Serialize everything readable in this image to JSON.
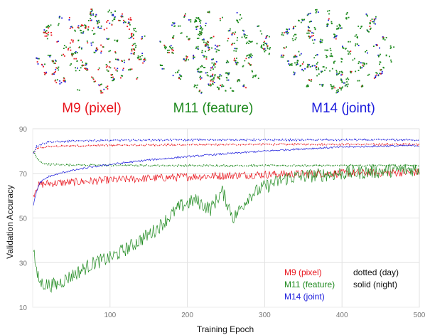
{
  "embeddings": [
    {
      "label": "M9 (pixel)",
      "color": "#e8141c"
    },
    {
      "label": "M11 (feature)",
      "color": "#1f8a1f"
    },
    {
      "label": "M14 (joint)",
      "color": "#1c1cdc"
    }
  ],
  "chart_data": {
    "type": "line",
    "xlabel": "Training Epoch",
    "ylabel": "Validation Accuracy",
    "xlim": [
      0,
      500
    ],
    "ylim": [
      10,
      90
    ],
    "xticks": [
      100,
      200,
      300,
      400,
      500
    ],
    "yticks": [
      10,
      30,
      50,
      70,
      90
    ],
    "grid": true,
    "legend": {
      "placement": "bottom-right",
      "models": [
        {
          "label": "M9 (pixel)",
          "color": "#e8141c"
        },
        {
          "label": "M11 (feature)",
          "color": "#1f8a1f"
        },
        {
          "label": "M14 (joint)",
          "color": "#1c1cdc"
        }
      ],
      "styles": [
        "dotted (day)",
        "solid (night)"
      ]
    },
    "series": [
      {
        "model": "M9 (pixel)",
        "style": "dotted (day)",
        "color": "#e8141c",
        "x": [
          1,
          5,
          10,
          20,
          50,
          100,
          200,
          300,
          400,
          500
        ],
        "y": [
          79,
          81,
          81.5,
          82,
          82.3,
          82.6,
          82.8,
          83,
          83,
          83
        ]
      },
      {
        "model": "M9 (pixel)",
        "style": "solid (night)",
        "color": "#e8141c",
        "x": [
          1,
          5,
          10,
          20,
          50,
          100,
          200,
          300,
          400,
          500
        ],
        "y": [
          60,
          64,
          65,
          65.5,
          66,
          67,
          68.5,
          69.5,
          70,
          70.5
        ]
      },
      {
        "model": "M11 (feature)",
        "style": "dotted (day)",
        "color": "#1f8a1f",
        "x": [
          1,
          5,
          10,
          20,
          50,
          100,
          200,
          300,
          400,
          500
        ],
        "y": [
          80,
          77,
          75,
          74,
          73.8,
          73.6,
          73.5,
          73.5,
          73.5,
          73.5
        ]
      },
      {
        "model": "M11 (feature)",
        "style": "solid (night)",
        "color": "#1f8a1f",
        "x": [
          1,
          5,
          10,
          20,
          30,
          50,
          80,
          100,
          130,
          160,
          190,
          210,
          230,
          245,
          260,
          280,
          300,
          330,
          360,
          400,
          450,
          500
        ],
        "y": [
          37,
          25,
          21,
          20,
          20,
          24,
          30,
          32,
          38,
          45,
          55,
          58,
          54,
          62,
          50,
          60,
          64,
          68,
          69,
          70,
          71,
          72
        ]
      },
      {
        "model": "M14 (joint)",
        "style": "dotted (day)",
        "color": "#1c1cdc",
        "x": [
          1,
          5,
          10,
          20,
          50,
          100,
          200,
          300,
          400,
          500
        ],
        "y": [
          79,
          82,
          83,
          84,
          84.5,
          84.8,
          85,
          85,
          85,
          85
        ]
      },
      {
        "model": "M14 (joint)",
        "style": "solid (night)",
        "color": "#1c1cdc",
        "x": [
          1,
          5,
          10,
          20,
          40,
          70,
          100,
          150,
          200,
          250,
          300,
          350,
          400,
          450,
          500
        ],
        "y": [
          56,
          62,
          66,
          68.5,
          70.5,
          72.5,
          74,
          76,
          77.5,
          78.8,
          80,
          81,
          81.8,
          82.2,
          82.5
        ]
      }
    ]
  }
}
